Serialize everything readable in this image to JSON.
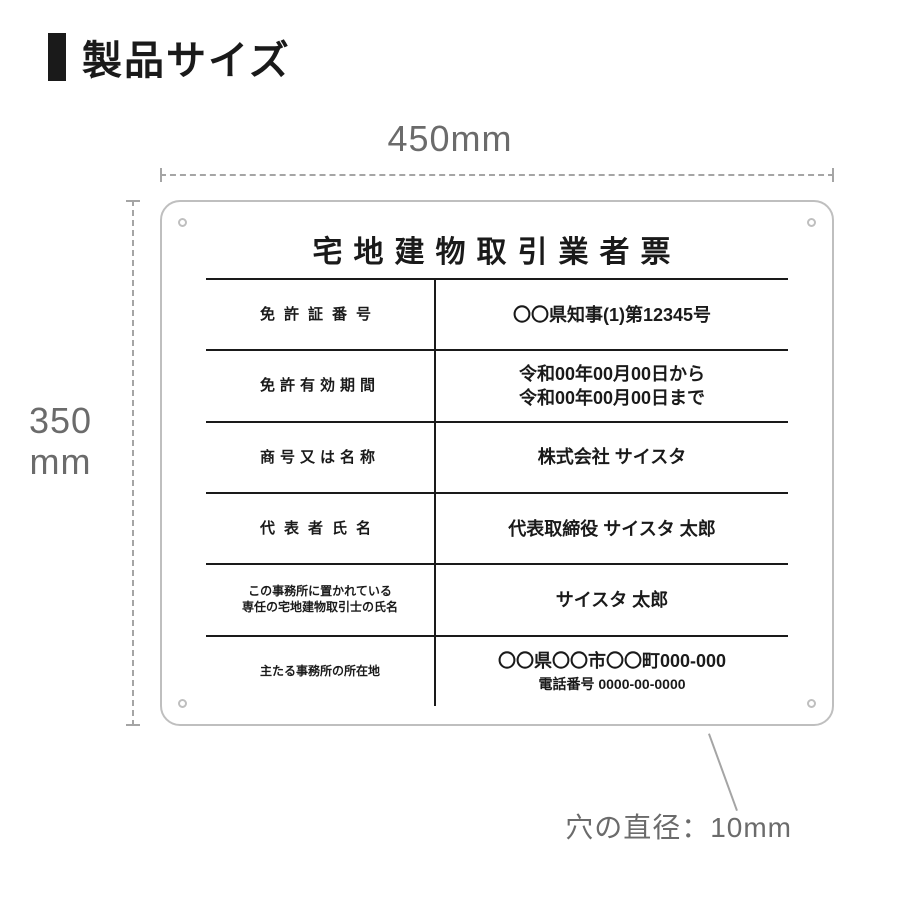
{
  "colors": {
    "text": "#1a1a1a",
    "muted": "#6b6b6b",
    "ruler": "#a5a5a5",
    "plate_border": "#bfbfbf",
    "background": "#ffffff"
  },
  "header": {
    "title": "製品サイズ"
  },
  "dimensions": {
    "width_label": "450mm",
    "height_label_line1": "350",
    "height_label_line2": "mm",
    "hole_label": "穴の直径：10mm"
  },
  "plate": {
    "title": "宅地建物取引業者票",
    "rows": [
      {
        "label_lines": [
          "免許証番号"
        ],
        "label_class": "sparse",
        "value_lines": [
          "〇〇県知事(1)第12345号"
        ]
      },
      {
        "label_lines": [
          "免許有効期間"
        ],
        "label_class": "sparse2",
        "value_lines": [
          "令和00年00月00日から",
          "令和00年00月00日まで"
        ]
      },
      {
        "label_lines": [
          "商号又は名称"
        ],
        "label_class": "sparse2",
        "value_lines": [
          "株式会社 サイスタ"
        ]
      },
      {
        "label_lines": [
          "代表者氏名"
        ],
        "label_class": "sparse",
        "value_lines": [
          "代表取締役 サイスタ 太郎"
        ]
      },
      {
        "label_lines": [
          "この事務所に置かれている",
          "専任の宅地建物取引士の氏名"
        ],
        "label_class": "small",
        "value_lines": [
          "サイスタ 太郎"
        ]
      },
      {
        "label_lines": [
          "主たる事務所の所在地"
        ],
        "label_class": "small",
        "value_lines": [
          "〇〇県〇〇市〇〇町000-000"
        ],
        "sub_line": "電話番号 0000-00-0000"
      }
    ]
  }
}
